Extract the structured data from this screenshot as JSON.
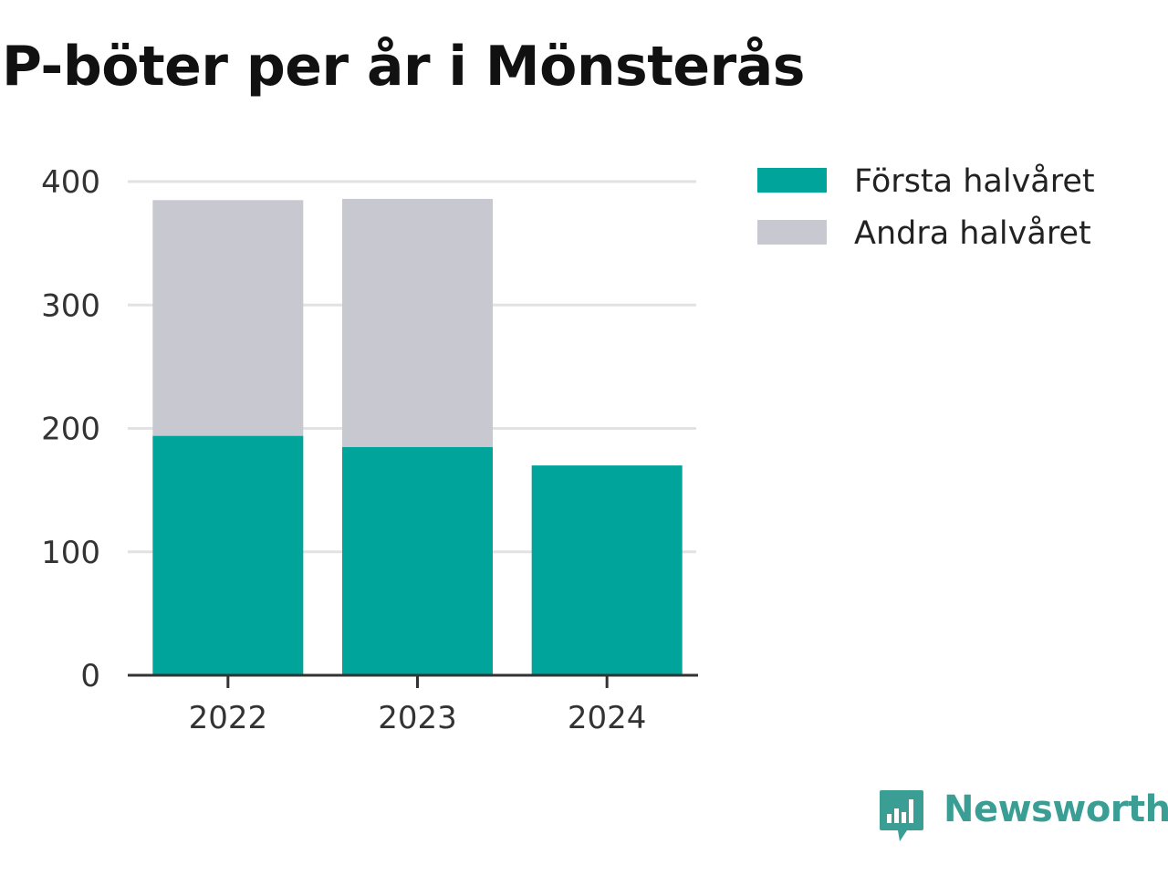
{
  "title": "P-böter per år i Mönsterås",
  "colors": {
    "first": "#00a49a",
    "second": "#c8c8d0",
    "grid": "#e2e2e2",
    "axis": "#333333",
    "brand": "#3a9e94"
  },
  "brand": {
    "name": "Newsworthy",
    "icon": "chart-bubble-icon"
  },
  "chart_data": {
    "type": "bar",
    "stacked": true,
    "title": "P-böter per år i Mönsterås",
    "categories": [
      "2022",
      "2023",
      "2024"
    ],
    "series": [
      {
        "name": "Första halvåret",
        "values": [
          194,
          185,
          170
        ]
      },
      {
        "name": "Andra halvåret",
        "values": [
          191,
          201,
          null
        ]
      }
    ],
    "ylim": [
      0,
      400
    ],
    "yticks": [
      0,
      100,
      200,
      300,
      400
    ],
    "grid": true,
    "legend": "right",
    "xlabel": "",
    "ylabel": ""
  }
}
